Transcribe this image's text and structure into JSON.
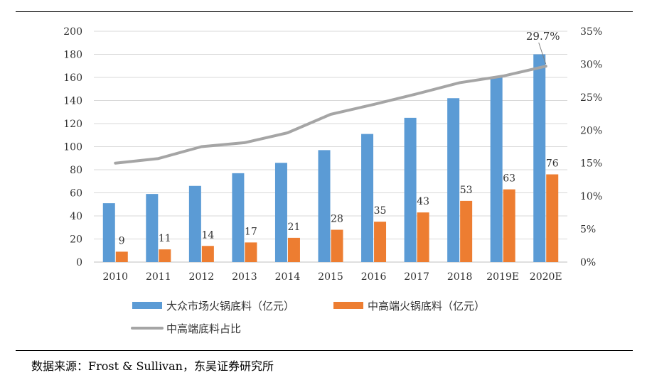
{
  "chart_data": {
    "type": "bar",
    "categories": [
      "2010",
      "2011",
      "2012",
      "2013",
      "2014",
      "2015",
      "2016",
      "2017",
      "2018",
      "2019E",
      "2020E"
    ],
    "series": [
      {
        "name": "大众市场火锅底料（亿元）",
        "type": "bar",
        "color": "#5B9BD5",
        "values": [
          51,
          59,
          66,
          77,
          86,
          97,
          111,
          125,
          142,
          160,
          180
        ]
      },
      {
        "name": "中高端火锅底料（亿元）",
        "type": "bar",
        "color": "#ED7D31",
        "values": [
          9,
          11,
          14,
          17,
          21,
          28,
          35,
          43,
          53,
          63,
          76
        ]
      },
      {
        "name": "中高端底料占比",
        "type": "line",
        "axis": "right",
        "color": "#A5A5A5",
        "values": [
          15.0,
          15.7,
          17.5,
          18.1,
          19.6,
          22.4,
          23.9,
          25.5,
          27.2,
          28.2,
          29.7
        ]
      }
    ],
    "bar_labels": [
      "9",
      "11",
      "14",
      "17",
      "21",
      "28",
      "35",
      "43",
      "53",
      "63",
      "76"
    ],
    "line_label": "29.7%",
    "ylim": [
      0,
      200
    ],
    "y_ticks": [
      "0",
      "20",
      "40",
      "60",
      "80",
      "100",
      "120",
      "140",
      "160",
      "180",
      "200"
    ],
    "y2lim": [
      0,
      35
    ],
    "y2_ticks": [
      "0%",
      "5%",
      "10%",
      "15%",
      "20%",
      "25%",
      "30%",
      "35%"
    ],
    "legend_position": "bottom"
  },
  "source": "数据来源：Frost & Sullivan，东吴证券研究所"
}
